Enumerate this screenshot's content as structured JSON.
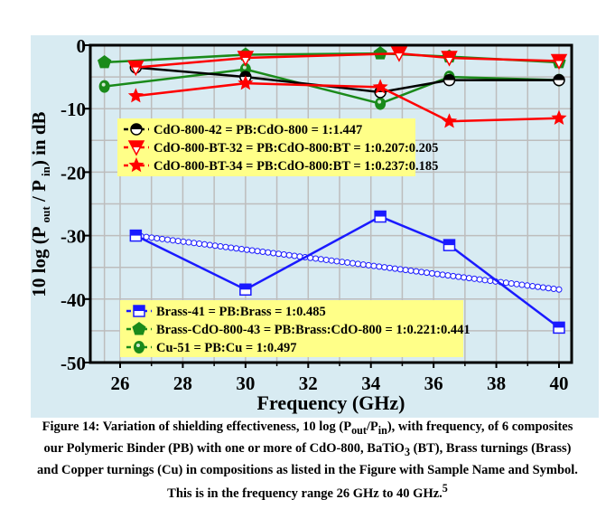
{
  "chart_data": {
    "type": "line",
    "xlabel": "Frequency (GHz)",
    "ylabel": "10 log (P_out / P_in) in dB",
    "xlim": [
      25.2,
      40.4
    ],
    "ylim": [
      -50,
      0
    ],
    "xticks": [
      "26",
      "28",
      "30",
      "32",
      "34",
      "36",
      "38",
      "40"
    ],
    "yticks": [
      "0",
      "-10",
      "-20",
      "-30",
      "-40",
      "-50"
    ],
    "grid": true,
    "colors": {
      "panel": "#d8ebf2",
      "legend": "#ffff88",
      "black": "#000000",
      "red": "#ff0000",
      "blue": "#1a1aff",
      "green": "#1a8a1a"
    },
    "legends": [
      {
        "placement": "upper-left",
        "entries": [
          0,
          1,
          2
        ]
      },
      {
        "placement": "lower-left",
        "entries": [
          3,
          4,
          5
        ]
      }
    ],
    "series": [
      {
        "name": "CdO-800-42 = PB:CdO-800 = 1:1.447",
        "color": "#000000",
        "marker": "half-circle",
        "x": [
          26.5,
          30,
          34.3,
          36.5,
          40
        ],
        "y": [
          -3.5,
          -5,
          -7.4,
          -5.5,
          -5.5
        ]
      },
      {
        "name": "CdO-800-BT-32 = PB:CdO-800:BT = 1:0.207:0.205",
        "color": "#ff0000",
        "marker": "triangle-down",
        "x": [
          26.5,
          30,
          34.9,
          36.5,
          40
        ],
        "y": [
          -3.5,
          -2,
          -1.3,
          -2,
          -2.5
        ]
      },
      {
        "name": "CdO-800-BT-34 = PB:CdO-800:BT = 1:0.237:0.185",
        "color": "#ff0000",
        "marker": "star",
        "x": [
          26.5,
          30,
          34.3,
          36.5,
          40
        ],
        "y": [
          -8,
          -6,
          -6.6,
          -12,
          -11.5
        ]
      },
      {
        "name": "Brass-41 = PB:Brass = 1:0.485",
        "color": "#1a1aff",
        "marker": "half-square",
        "x": [
          26.5,
          30,
          34.3,
          36.5,
          40
        ],
        "y": [
          -30,
          -38.5,
          -27,
          -31.5,
          -44.5
        ]
      },
      {
        "name": "Brass-CdO-800-43 = PB:Brass:CdO-800 = 1:0.221:0.441",
        "color": "#1a8a1a",
        "marker": "pentagon",
        "x": [
          25.5,
          30,
          34.3,
          36.5,
          40
        ],
        "y": [
          -2.7,
          -1.5,
          -1.3,
          -1.8,
          -2.7
        ]
      },
      {
        "name": "Cu-51 = PB:Cu = 1:0.497",
        "color": "#1a8a1a",
        "marker": "sphere",
        "x": [
          25.5,
          30,
          34.3,
          36.5,
          40
        ],
        "y": [
          -6.5,
          -3.8,
          -9.2,
          -5,
          -5.5
        ]
      }
    ],
    "trend_line": {
      "color": "#1a1aff",
      "marker": "hollow-circle",
      "x": [
        26.5,
        40
      ],
      "y": [
        -30,
        -38.5
      ]
    }
  },
  "caption": {
    "prefix": "Figure 14: Variation of shielding effectiveness, 10 log (P",
    "sub1": "out",
    "mid1": "/P",
    "sub2": "in",
    "mid2": "), with frequency, of 6 composites our Polymeric Binder (PB) with one or more of CdO-800, BaTiO",
    "sub3": "3",
    "mid3": " (BT), Brass turnings (Brass) and Copper turnings (Cu) in compositions as listed in the Figure with Sample Name and Symbol. This is in the frequency range 26 GHz to 40 GHz.",
    "sup": "5"
  }
}
